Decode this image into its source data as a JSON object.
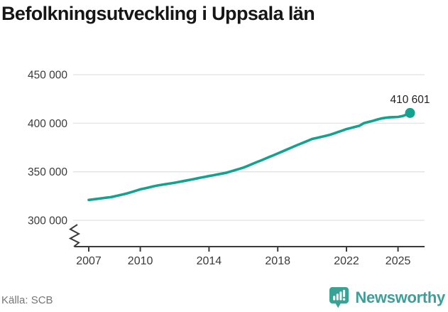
{
  "header": {
    "title": "Befolkningsutveckling i Uppsala län"
  },
  "footer": {
    "source": "Källa: SCB",
    "brand": "Newsworthy"
  },
  "colors": {
    "line": "#13a28f",
    "grid": "#e2e2e2",
    "axis": "#3b3b3b",
    "tick_label": "#3a3a3a",
    "end_label": "#1f1f1f",
    "title": "#161616",
    "source": "#767676",
    "brand": "#3f9e99",
    "brand_icon": "#3aa195"
  },
  "chart_data": {
    "type": "line",
    "title": "Befolkningsutveckling i Uppsala län",
    "xlabel": "",
    "ylabel": "",
    "grid": "horizontal",
    "legend": "none",
    "axis_break_bottom_left": true,
    "xlim": [
      2006.9,
      2026.5
    ],
    "ylim": [
      295000,
      455000
    ],
    "yticks": [
      {
        "label": "450 000",
        "value": 450000
      },
      {
        "label": "400 000",
        "value": 400000
      },
      {
        "label": "350 000",
        "value": 350000
      },
      {
        "label": "300 000",
        "value": 300000
      }
    ],
    "xticks": [
      {
        "label": "2007",
        "value": 2007
      },
      {
        "label": "2010",
        "value": 2010
      },
      {
        "label": "2014",
        "value": 2014
      },
      {
        "label": "2018",
        "value": 2018
      },
      {
        "label": "2022",
        "value": 2022
      },
      {
        "label": "2025",
        "value": 2025
      }
    ],
    "end_label": "410 601",
    "end_point": {
      "year": 2025.7,
      "value": 410601
    },
    "points": [
      [
        2007.0,
        321000
      ],
      [
        2007.25,
        321500
      ],
      [
        2007.5,
        322100
      ],
      [
        2007.75,
        322700
      ],
      [
        2008.0,
        323300
      ],
      [
        2008.25,
        323800
      ],
      [
        2008.5,
        324700
      ],
      [
        2008.75,
        325700
      ],
      [
        2009.0,
        326700
      ],
      [
        2009.25,
        327800
      ],
      [
        2009.5,
        329100
      ],
      [
        2009.75,
        330500
      ],
      [
        2010.0,
        331900
      ],
      [
        2010.25,
        332900
      ],
      [
        2010.5,
        333900
      ],
      [
        2010.75,
        334900
      ],
      [
        2011.0,
        335900
      ],
      [
        2011.25,
        336600
      ],
      [
        2011.5,
        337300
      ],
      [
        2011.75,
        338000
      ],
      [
        2012.0,
        338700
      ],
      [
        2012.25,
        339500
      ],
      [
        2012.5,
        340400
      ],
      [
        2012.75,
        341200
      ],
      [
        2013.0,
        342100
      ],
      [
        2013.25,
        343000
      ],
      [
        2013.5,
        343900
      ],
      [
        2013.75,
        344700
      ],
      [
        2014.0,
        345600
      ],
      [
        2014.25,
        346400
      ],
      [
        2014.5,
        347300
      ],
      [
        2014.75,
        348100
      ],
      [
        2015.0,
        349000
      ],
      [
        2015.25,
        350300
      ],
      [
        2015.5,
        351600
      ],
      [
        2015.75,
        352900
      ],
      [
        2016.0,
        354300
      ],
      [
        2016.25,
        356100
      ],
      [
        2016.5,
        357900
      ],
      [
        2016.75,
        359700
      ],
      [
        2017.0,
        361500
      ],
      [
        2017.25,
        363300
      ],
      [
        2017.5,
        365200
      ],
      [
        2017.75,
        367000
      ],
      [
        2018.0,
        368900
      ],
      [
        2018.25,
        370800
      ],
      [
        2018.5,
        372700
      ],
      [
        2018.75,
        374600
      ],
      [
        2019.0,
        376500
      ],
      [
        2019.25,
        378300
      ],
      [
        2019.5,
        380100
      ],
      [
        2019.75,
        381900
      ],
      [
        2020.0,
        383800
      ],
      [
        2020.25,
        384800
      ],
      [
        2020.5,
        385800
      ],
      [
        2020.75,
        386800
      ],
      [
        2021.0,
        387900
      ],
      [
        2021.25,
        389400
      ],
      [
        2021.5,
        390900
      ],
      [
        2021.75,
        392400
      ],
      [
        2022.0,
        394000
      ],
      [
        2022.25,
        395100
      ],
      [
        2022.5,
        396300
      ],
      [
        2022.75,
        397400
      ],
      [
        2023.0,
        400000
      ],
      [
        2023.25,
        401200
      ],
      [
        2023.5,
        402300
      ],
      [
        2023.75,
        403600
      ],
      [
        2024.0,
        404800
      ],
      [
        2024.25,
        405600
      ],
      [
        2024.5,
        406100
      ],
      [
        2024.75,
        406300
      ],
      [
        2025.0,
        406500
      ],
      [
        2025.25,
        407300
      ],
      [
        2025.45,
        408600
      ],
      [
        2025.6,
        409800
      ],
      [
        2025.7,
        410601
      ]
    ]
  }
}
